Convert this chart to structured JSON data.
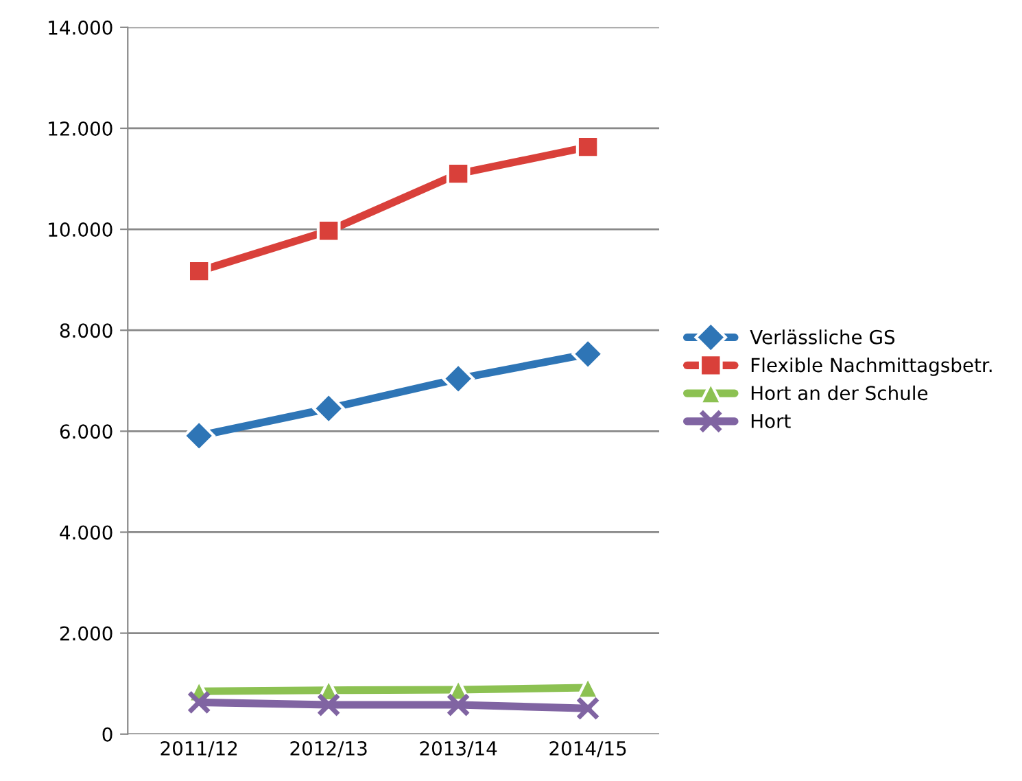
{
  "chart_data": {
    "type": "line",
    "categories": [
      "2011/12",
      "2012/13",
      "2013/14",
      "2014/15"
    ],
    "series": [
      {
        "name": "Verlässliche GS",
        "color": "#2e75b6",
        "marker": "diamond",
        "values": [
          5910,
          6450,
          7040,
          7530
        ]
      },
      {
        "name": "Flexible Nachmittagsbetr.",
        "color": "#d9403a",
        "marker": "square",
        "values": [
          9170,
          9970,
          11100,
          11630
        ]
      },
      {
        "name": "Hort an der Schule",
        "color": "#8cc152",
        "marker": "triangle",
        "values": [
          850,
          870,
          880,
          920
        ]
      },
      {
        "name": "Hort",
        "color": "#8064a2",
        "marker": "cross",
        "values": [
          630,
          580,
          580,
          510
        ]
      }
    ],
    "ylim": [
      0,
      14000
    ],
    "yticks": [
      {
        "value": 0,
        "label": "0"
      },
      {
        "value": 2000,
        "label": "2.000"
      },
      {
        "value": 4000,
        "label": "4.000"
      },
      {
        "value": 6000,
        "label": "6.000"
      },
      {
        "value": 8000,
        "label": "8.000"
      },
      {
        "value": 10000,
        "label": "10.000"
      },
      {
        "value": 12000,
        "label": "12.000"
      },
      {
        "value": 14000,
        "label": "14.000"
      }
    ],
    "grid": "y",
    "legend": "right",
    "line_style": "solid"
  }
}
